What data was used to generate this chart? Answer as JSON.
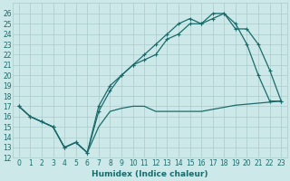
{
  "xlabel": "Humidex (Indice chaleur)",
  "bg_color": "#cce8e8",
  "line_color": "#1a6b6b",
  "grid_color": "#aacccc",
  "ylim": [
    12,
    27
  ],
  "xlim": [
    -0.5,
    23.5
  ],
  "yticks": [
    12,
    13,
    14,
    15,
    16,
    17,
    18,
    19,
    20,
    21,
    22,
    23,
    24,
    25,
    26
  ],
  "xticks": [
    0,
    1,
    2,
    3,
    4,
    5,
    6,
    7,
    8,
    9,
    10,
    11,
    12,
    13,
    14,
    15,
    16,
    17,
    18,
    19,
    20,
    21,
    22,
    23
  ],
  "line1_x": [
    0,
    1,
    2,
    3,
    4,
    5,
    6,
    7,
    8,
    9,
    10,
    11,
    12,
    13,
    14,
    15,
    16,
    17,
    18,
    19,
    20,
    21,
    22,
    23
  ],
  "line1_y": [
    17.0,
    16.0,
    15.5,
    15.0,
    13.0,
    13.5,
    12.5,
    15.0,
    16.5,
    16.8,
    17.0,
    17.0,
    16.5,
    16.5,
    16.5,
    16.5,
    16.5,
    16.7,
    16.9,
    17.1,
    17.2,
    17.3,
    17.4,
    17.5
  ],
  "line2_x": [
    0,
    1,
    2,
    3,
    4,
    5,
    6,
    7,
    8,
    9,
    10,
    11,
    12,
    13,
    14,
    15,
    16,
    17,
    18,
    19,
    20,
    21,
    22,
    23
  ],
  "line2_y": [
    17.0,
    16.0,
    15.5,
    15.0,
    13.0,
    13.5,
    12.5,
    16.5,
    18.5,
    20.0,
    21.0,
    21.5,
    22.0,
    23.5,
    24.0,
    25.0,
    25.0,
    25.5,
    26.0,
    25.0,
    23.0,
    20.0,
    17.5,
    17.5
  ],
  "line3_x": [
    0,
    1,
    2,
    3,
    4,
    5,
    6,
    7,
    8,
    9,
    10,
    11,
    12,
    13,
    14,
    15,
    16,
    17,
    18,
    19,
    20,
    21,
    22,
    23
  ],
  "line3_y": [
    17.0,
    16.0,
    15.5,
    15.0,
    13.0,
    13.5,
    12.5,
    17.0,
    19.0,
    20.0,
    21.0,
    22.0,
    23.0,
    24.0,
    25.0,
    25.5,
    25.0,
    26.0,
    26.0,
    24.5,
    24.5,
    23.0,
    20.5,
    17.5
  ],
  "xlabel_fontsize": 6.5,
  "tick_fontsize": 5.5
}
